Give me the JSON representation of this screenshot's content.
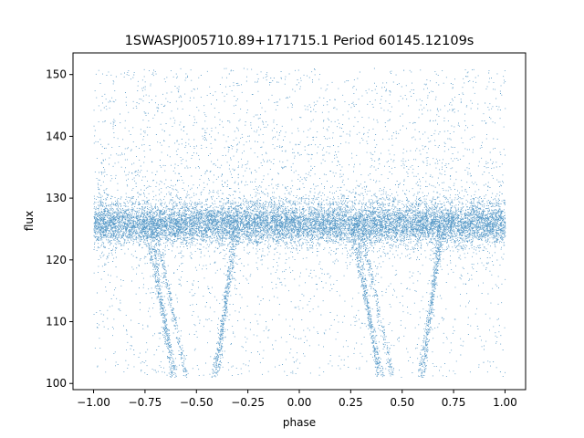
{
  "chart_data": {
    "type": "scatter",
    "title": "1SWASPJ005710.89+171715.1 Period 60145.12109s",
    "xlabel": "phase",
    "ylabel": "flux",
    "xlim": [
      -1.1,
      1.1
    ],
    "ylim": [
      99,
      153.5
    ],
    "x_ticks": [
      -1.0,
      -0.75,
      -0.5,
      -0.25,
      0.0,
      0.25,
      0.5,
      0.75,
      1.0
    ],
    "x_tick_labels": [
      "−1.00",
      "−0.75",
      "−0.50",
      "−0.25",
      "0.00",
      "0.25",
      "0.50",
      "0.75",
      "1.00"
    ],
    "y_ticks": [
      100,
      110,
      120,
      130,
      140,
      150
    ],
    "y_tick_labels": [
      "100",
      "110",
      "120",
      "130",
      "140",
      "150"
    ],
    "grid": false,
    "legend": "none",
    "marker_color": "#1f77b4",
    "series": [
      {
        "points_description_free": true,
        "x_range": [
          -1.0,
          1.0
        ],
        "band_center": 125.8,
        "band_halfwidth": 3.0,
        "dip_tracks": [
          {
            "x": [
              -0.75,
              -0.6
            ],
            "y": [
              125,
              101
            ]
          },
          {
            "x": [
              -0.72,
              -0.62
            ],
            "y": [
              125,
              101
            ]
          },
          {
            "x": [
              -0.7,
              -0.55
            ],
            "y": [
              125,
              101
            ]
          },
          {
            "x": [
              -0.3,
              -0.42
            ],
            "y": [
              125,
              101
            ]
          },
          {
            "x": [
              -0.32,
              -0.4
            ],
            "y": [
              125,
              101
            ]
          },
          {
            "x": [
              0.25,
              0.4
            ],
            "y": [
              125,
              101
            ]
          },
          {
            "x": [
              0.28,
              0.38
            ],
            "y": [
              125,
              101
            ]
          },
          {
            "x": [
              0.3,
              0.45
            ],
            "y": [
              125,
              101
            ]
          },
          {
            "x": [
              0.7,
              0.58
            ],
            "y": [
              125,
              101
            ]
          },
          {
            "x": [
              0.68,
              0.6
            ],
            "y": [
              125,
              101
            ]
          }
        ]
      }
    ]
  }
}
